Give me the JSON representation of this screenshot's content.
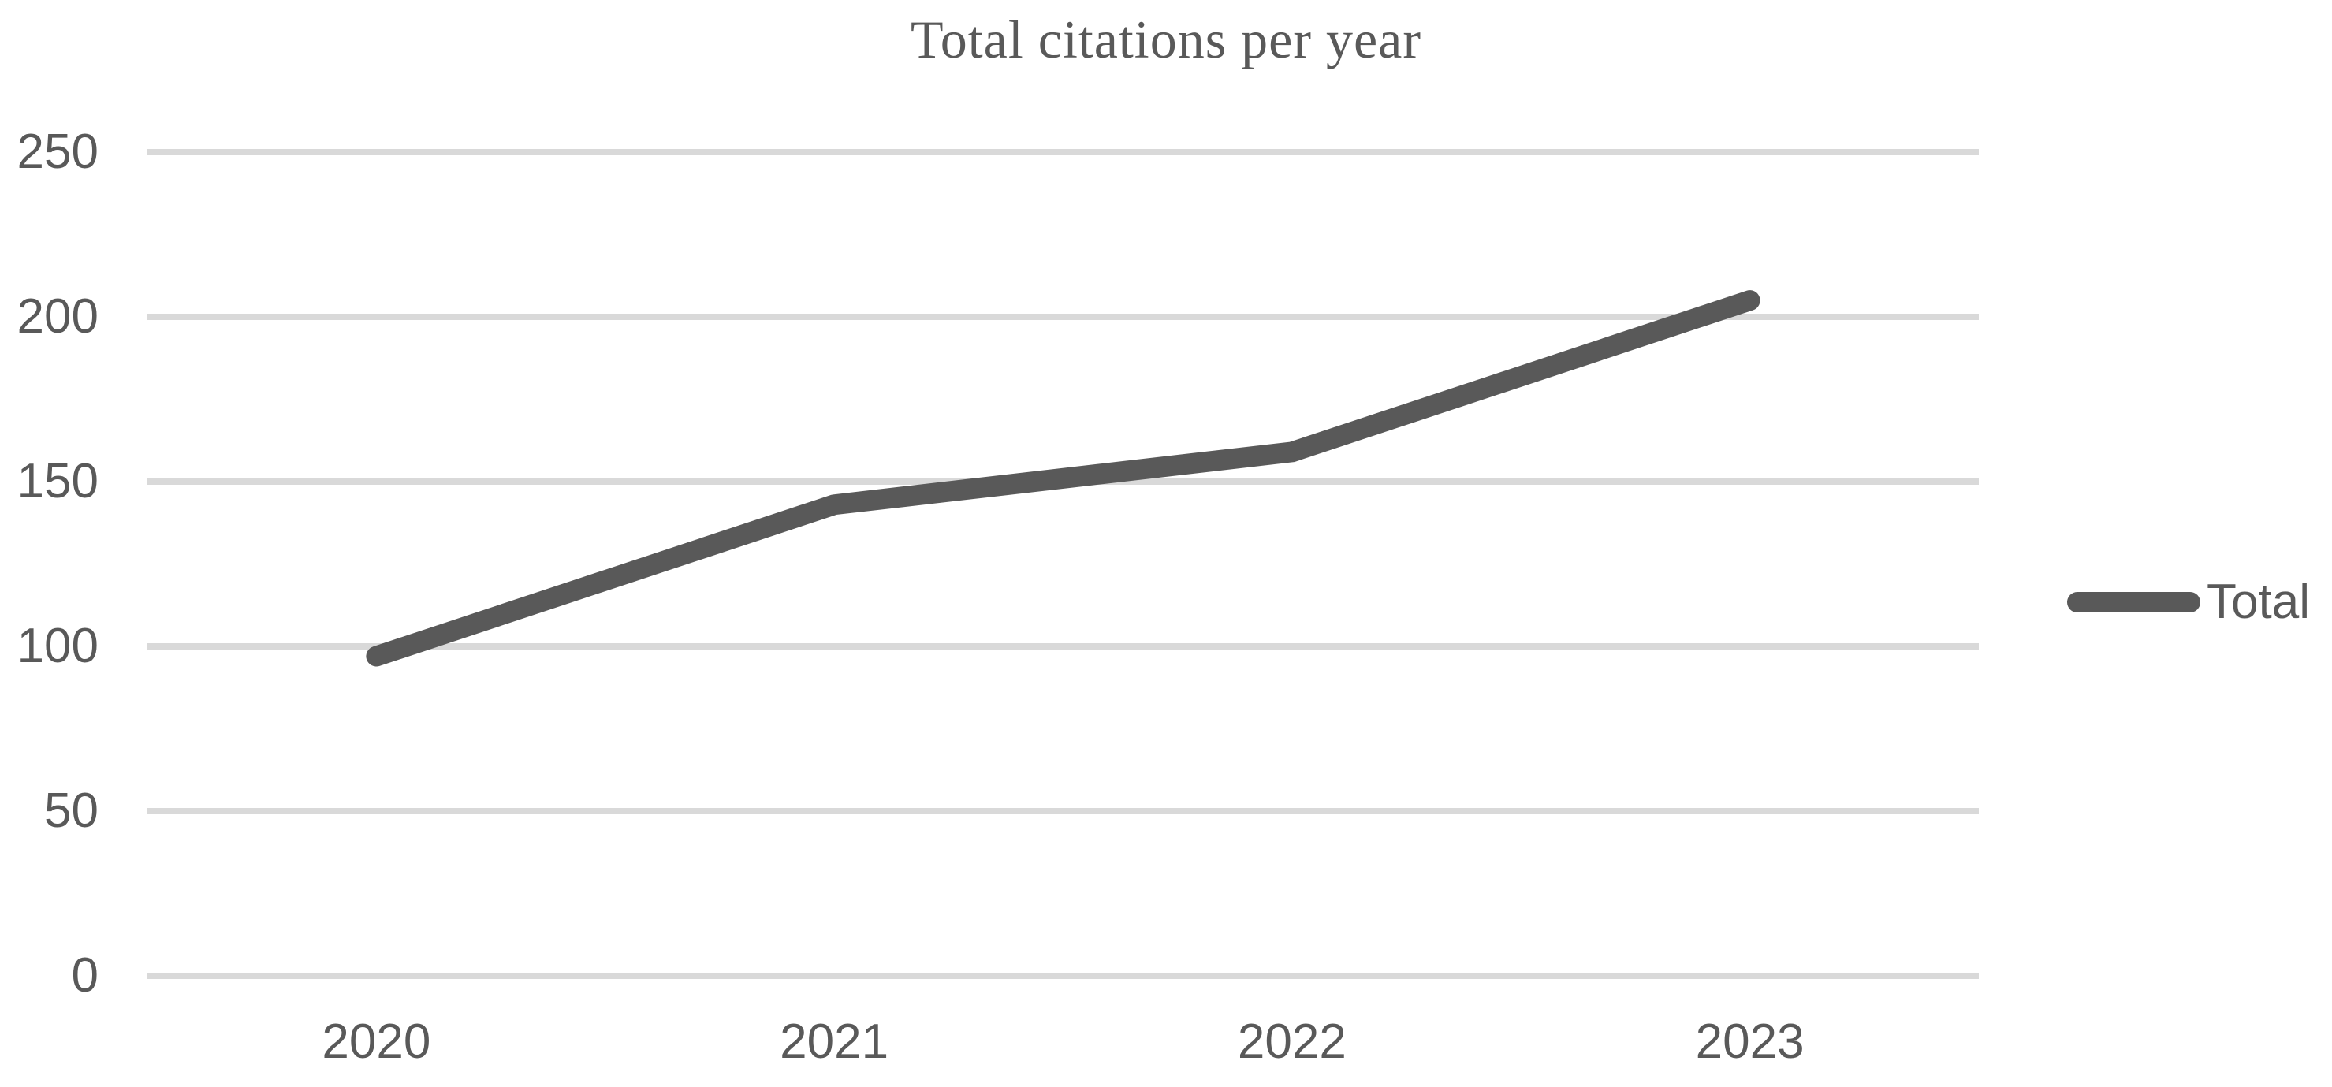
{
  "chart_data": {
    "type": "line",
    "title": "Total citations per year",
    "categories": [
      "2020",
      "2021",
      "2022",
      "2023"
    ],
    "series": [
      {
        "name": "Total",
        "values": [
          97,
          143,
          159,
          205
        ]
      }
    ],
    "xlabel": "",
    "ylabel": "",
    "ylim": [
      0,
      250
    ],
    "yticks": [
      0,
      50,
      100,
      150,
      200,
      250
    ],
    "grid": "horizontal",
    "legend_position": "right",
    "colors": {
      "series_line": "#595959",
      "gridline": "#d9d9d9",
      "axis_label": "#595959",
      "title": "#595959",
      "background": "#ffffff"
    }
  }
}
